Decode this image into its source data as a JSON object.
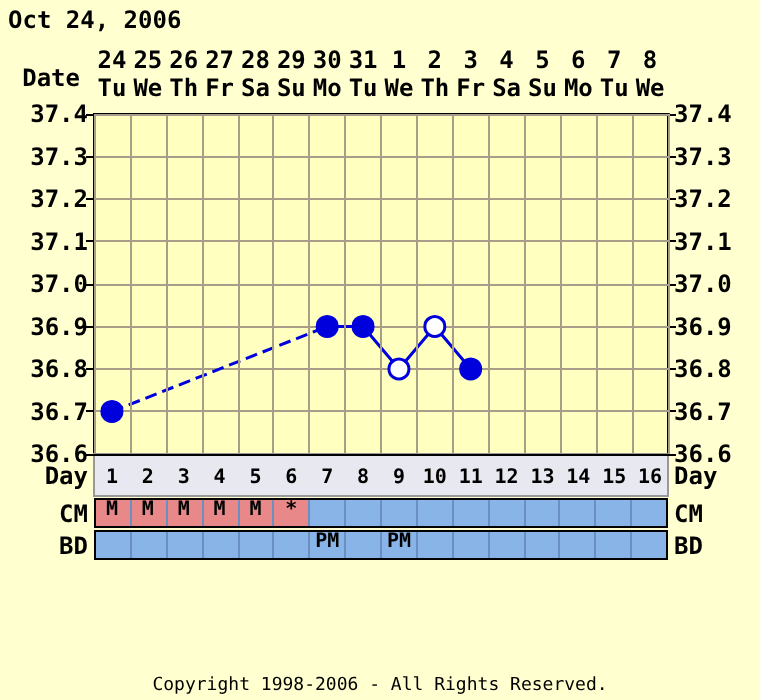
{
  "chart_data": {
    "type": "line",
    "title": "Oct 24, 2006",
    "xlabel": "Day",
    "x2label": "Date",
    "categories": [
      "1\nM",
      "2\nM",
      "3\nM",
      "4\nM",
      "5\nM",
      "6\n*",
      "7\n\nPM",
      "8",
      "9\n\nPM",
      "10",
      "11",
      "12",
      "13",
      "14",
      "15",
      "16"
    ],
    "series": [
      {
        "color": "#0000dd",
        "line_style": "solid",
        "marker": "circle",
        "values": [
          36.7,
          null,
          null,
          null,
          null,
          null,
          36.9,
          36.9,
          36.8,
          36.9,
          36.8,
          null,
          null,
          null,
          null,
          null
        ],
        "colors": [
          "#0000dd",
          null,
          null,
          null,
          null,
          null,
          "#0000dd",
          "#0000dd",
          "#ffffff",
          "#ffffff",
          "#0000dd",
          null,
          null,
          null,
          null,
          null
        ]
      }
    ],
    "ylim": [
      36.6,
      37.4
    ],
    "yticks": [
      36.6,
      36.7,
      36.8,
      36.9,
      {
        "value": 37,
        "label": "37.0"
      },
      37.1,
      37.2,
      37.3,
      37.4
    ],
    "y2lim": [
      36.6,
      37.4
    ],
    "y2ticks": [
      36.6,
      36.7,
      36.8,
      36.9,
      {
        "value": 37,
        "label": "37.0"
      },
      37.1,
      37.2,
      37.3,
      37.4
    ],
    "grid": true,
    "annotations": [
      "24\nTu",
      "25\nWe",
      "26\nTh",
      "27\nFr",
      "28\nSa",
      "29\nSu",
      "30\nMo",
      "31\nTu",
      "1\nWe",
      "2\nTh",
      "3\nFr",
      "4\nSa",
      "5\nSu",
      "6\nMo",
      "7\nTu",
      "8\nWe",
      "CM",
      "BD",
      "Copyright 1998-2006 - All Rights Reserved."
    ]
  }
}
